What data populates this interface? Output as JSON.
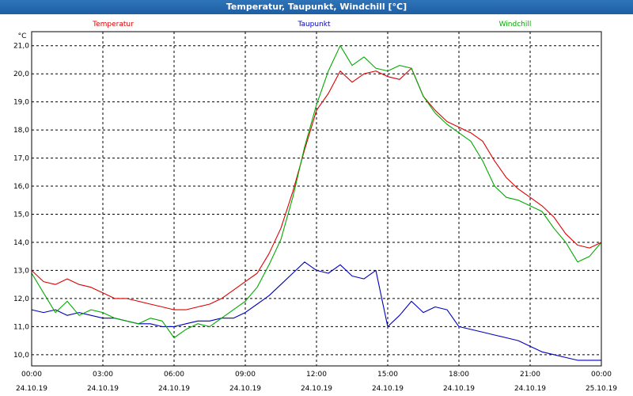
{
  "window": {
    "title": "Temperatur, Taupunkt, Windchill [°C]"
  },
  "chart_data": {
    "type": "line",
    "ylabel": "°C",
    "ylim": [
      9.6,
      21.5
    ],
    "xlim": [
      0,
      24
    ],
    "grid": true,
    "y_ticks": [
      "21,0",
      "20,0",
      "19,0",
      "18,0",
      "17,0",
      "16,0",
      "15,0",
      "14,0",
      "13,0",
      "12,0",
      "11,0",
      "10,0"
    ],
    "y_tick_values": [
      21,
      20,
      19,
      18,
      17,
      16,
      15,
      14,
      13,
      12,
      11,
      10
    ],
    "x_ticks": [
      {
        "time": "00:00",
        "date": "24.10.19"
      },
      {
        "time": "03:00",
        "date": "24.10.19"
      },
      {
        "time": "06:00",
        "date": "24.10.19"
      },
      {
        "time": "09:00",
        "date": "24.10.19"
      },
      {
        "time": "12:00",
        "date": "24.10.19"
      },
      {
        "time": "15:00",
        "date": "24.10.19"
      },
      {
        "time": "18:00",
        "date": "24.10.19"
      },
      {
        "time": "21:00",
        "date": "24.10.19"
      },
      {
        "time": "00:00",
        "date": "25.10.19"
      }
    ],
    "x_tick_hours": [
      0,
      3,
      6,
      9,
      12,
      15,
      18,
      21,
      24
    ],
    "series": [
      {
        "name": "Temperatur",
        "color": "#dd0000",
        "x": [
          0,
          0.5,
          1,
          1.5,
          2,
          2.5,
          3,
          3.5,
          4,
          4.5,
          5,
          5.5,
          6,
          6.5,
          7,
          7.5,
          8,
          8.5,
          9,
          9.5,
          10,
          10.5,
          11,
          11.5,
          12,
          12.5,
          13,
          13.5,
          14,
          14.5,
          15,
          15.5,
          16,
          16.5,
          17,
          17.5,
          18,
          18.5,
          19,
          19.5,
          20,
          20.5,
          21,
          21.5,
          22,
          22.5,
          23,
          23.5,
          24
        ],
        "y": [
          13.0,
          12.6,
          12.5,
          12.7,
          12.5,
          12.4,
          12.2,
          12.0,
          12.0,
          11.9,
          11.8,
          11.7,
          11.6,
          11.6,
          11.7,
          11.8,
          12.0,
          12.3,
          12.6,
          12.9,
          13.6,
          14.5,
          15.8,
          17.3,
          18.7,
          19.3,
          20.1,
          19.7,
          20.0,
          20.1,
          19.9,
          19.8,
          20.2,
          19.2,
          18.7,
          18.3,
          18.1,
          17.9,
          17.6,
          16.9,
          16.3,
          15.9,
          15.6,
          15.3,
          14.9,
          14.3,
          13.9,
          13.8,
          14.0
        ]
      },
      {
        "name": "Taupunkt",
        "color": "#0000bb",
        "x": [
          0,
          0.5,
          1,
          1.5,
          2,
          2.5,
          3,
          3.5,
          4,
          4.5,
          5,
          5.5,
          6,
          6.5,
          7,
          7.5,
          8,
          8.5,
          9,
          9.5,
          10,
          10.5,
          11,
          11.5,
          12,
          12.5,
          13,
          13.5,
          14,
          14.5,
          15,
          15.5,
          16,
          16.5,
          17,
          17.5,
          18,
          18.5,
          19,
          19.5,
          20,
          20.5,
          21,
          21.5,
          22,
          22.5,
          23,
          23.5,
          24
        ],
        "y": [
          11.6,
          11.5,
          11.6,
          11.4,
          11.5,
          11.4,
          11.3,
          11.3,
          11.2,
          11.1,
          11.1,
          11.0,
          11.0,
          11.1,
          11.2,
          11.2,
          11.3,
          11.3,
          11.5,
          11.8,
          12.1,
          12.5,
          12.9,
          13.3,
          13.0,
          12.9,
          13.2,
          12.8,
          12.7,
          13.0,
          11.0,
          11.4,
          11.9,
          11.5,
          11.7,
          11.6,
          11.0,
          10.9,
          10.8,
          10.7,
          10.6,
          10.5,
          10.3,
          10.1,
          10.0,
          9.9,
          9.8,
          9.8,
          9.8
        ]
      },
      {
        "name": "Windchill",
        "color": "#00aa00",
        "x": [
          0,
          0.5,
          1,
          1.5,
          2,
          2.5,
          3,
          3.5,
          4,
          4.5,
          5,
          5.5,
          6,
          6.5,
          7,
          7.5,
          8,
          8.5,
          9,
          9.5,
          10,
          10.5,
          11,
          11.5,
          12,
          12.5,
          13,
          13.5,
          14,
          14.5,
          15,
          15.5,
          16,
          16.5,
          17,
          17.5,
          18,
          18.5,
          19,
          19.5,
          20,
          20.5,
          21,
          21.5,
          22,
          22.5,
          23,
          23.5,
          24
        ],
        "y": [
          12.9,
          12.2,
          11.5,
          11.9,
          11.4,
          11.6,
          11.5,
          11.3,
          11.2,
          11.1,
          11.3,
          11.2,
          10.6,
          10.9,
          11.1,
          11.0,
          11.3,
          11.6,
          11.9,
          12.4,
          13.2,
          14.1,
          15.6,
          17.4,
          18.9,
          20.1,
          21.0,
          20.3,
          20.6,
          20.2,
          20.1,
          20.3,
          20.2,
          19.2,
          18.6,
          18.2,
          17.9,
          17.6,
          16.9,
          16.0,
          15.6,
          15.5,
          15.3,
          15.1,
          14.5,
          14.0,
          13.3,
          13.5,
          14.0
        ]
      }
    ]
  }
}
